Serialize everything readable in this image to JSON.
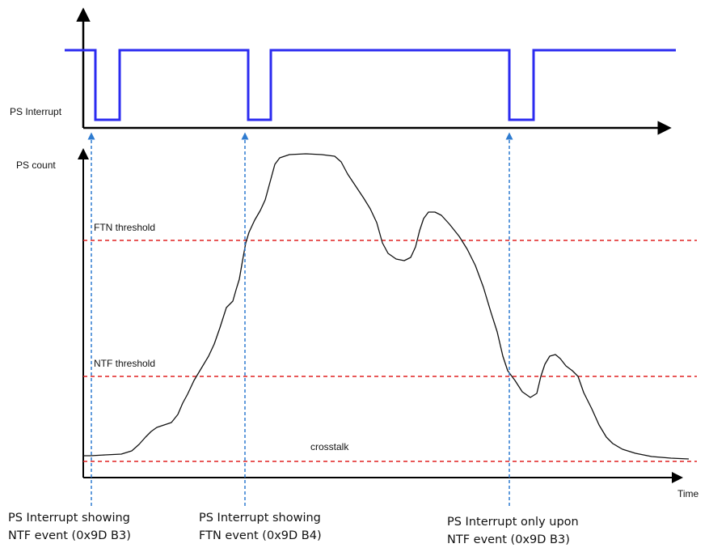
{
  "labels": {
    "ps_interrupt": "PS Interrupt",
    "ps_count": "PS count",
    "time": "Time",
    "ftn_threshold": "FTN threshold",
    "ntf_threshold": "NTF threshold",
    "crosstalk": "crosstalk"
  },
  "annotations": [
    {
      "line1": "PS Interrupt showing",
      "line2": "NTF event (0x9D B3)"
    },
    {
      "line1": "PS Interrupt showing",
      "line2": "FTN event (0x9D B4)"
    },
    {
      "line1": "PS Interrupt only upon",
      "line2": "NTF event (0x9D B3)"
    }
  ],
  "colors": {
    "interrupt_signal": "#2b2bf0",
    "threshold_line": "#e02020",
    "event_marker": "#2e7bd0",
    "axis": "#000000",
    "count_curve": "#111111"
  }
}
